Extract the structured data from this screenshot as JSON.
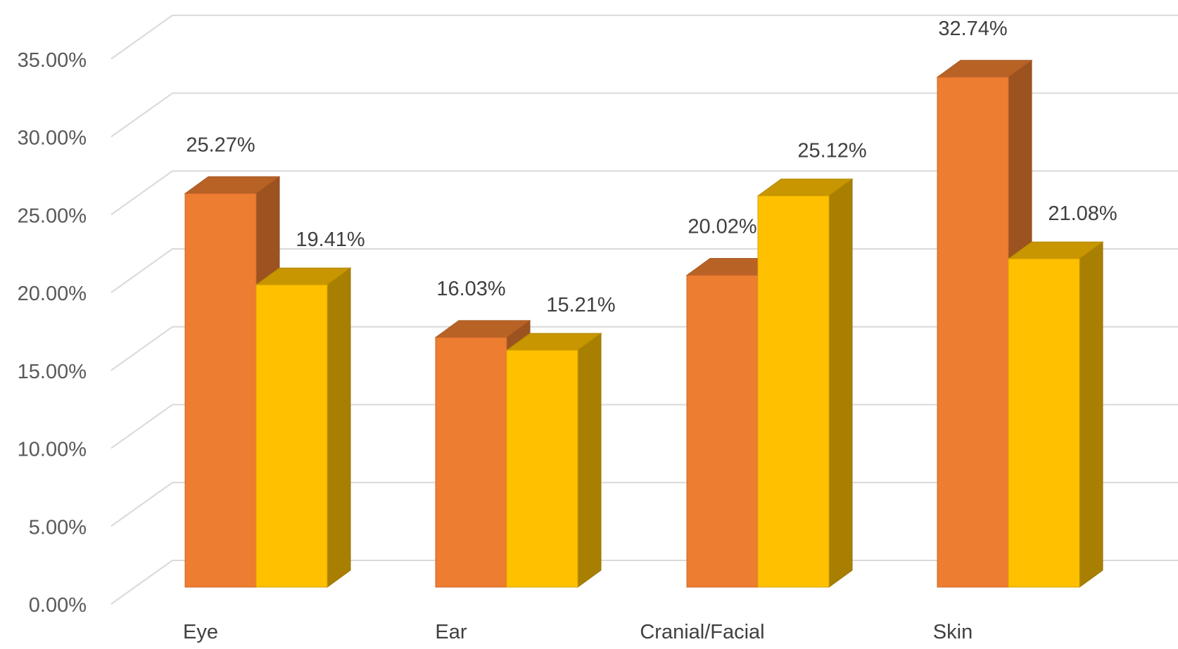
{
  "chart_data": {
    "type": "bar",
    "style": "3d-clustered-column",
    "categories": [
      "Eye",
      "Ear",
      "Cranial/Facial",
      "Skin"
    ],
    "series": [
      {
        "values": [
          25.27,
          16.03,
          20.02,
          32.74
        ],
        "color": "#ED7D31",
        "labels": [
          "25.27%",
          "16.03%",
          "20.02%",
          "32.74%"
        ]
      },
      {
        "values": [
          19.41,
          15.21,
          25.12,
          21.08
        ],
        "color": "#FFC000",
        "labels": [
          "19.41%",
          "15.21%",
          "25.12%",
          "21.08%"
        ]
      }
    ],
    "ylim": [
      0,
      35
    ],
    "ytick_labels": [
      "0.00%",
      "5.00%",
      "10.00%",
      "15.00%",
      "20.00%",
      "25.00%",
      "30.00%",
      "35.00%"
    ],
    "grid": true,
    "legend": "none"
  }
}
